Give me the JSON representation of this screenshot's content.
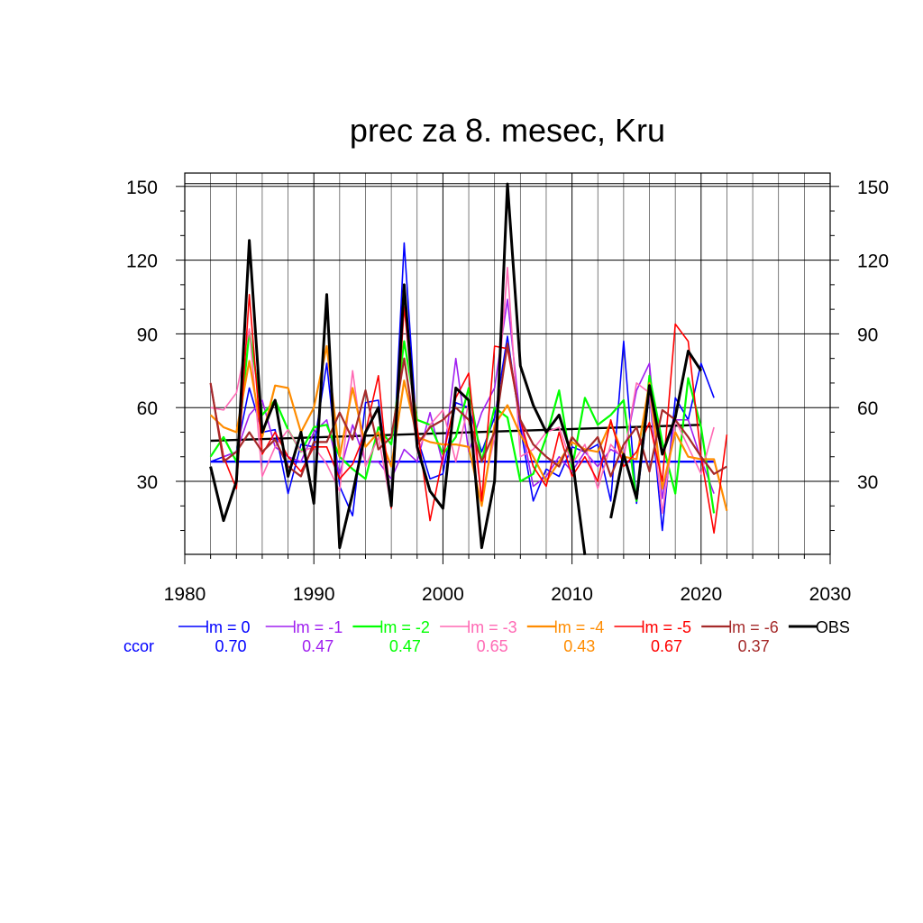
{
  "chart_data": {
    "type": "line",
    "title": "prec za 8. mesec, Kru",
    "xlabel": "",
    "ylabel": "",
    "xlim": [
      1980,
      2030
    ],
    "ylim": [
      0,
      150
    ],
    "x_ticks": [
      "1980",
      "1990",
      "2000",
      "2010",
      "2020",
      "2030"
    ],
    "y_ticks": [
      "30",
      "60",
      "90",
      "120",
      "150"
    ],
    "grid": true,
    "legend_position": "bottom",
    "ccor_label": "ccor",
    "series": [
      {
        "name": "lm = 0",
        "color": "#0000ff",
        "ccor": "0.70",
        "width": 1.6,
        "x": [
          1982,
          1983,
          1984,
          1985,
          1986,
          1987,
          1988,
          1989,
          1990,
          1991,
          1992,
          1993,
          1994,
          1995,
          1996,
          1997,
          1998,
          1999,
          2000,
          2001,
          2002,
          2003,
          2004,
          2005,
          2006,
          2007,
          2008,
          2009,
          2010,
          2011,
          2012,
          2013,
          2014,
          2015,
          2016,
          2017,
          2018,
          2019,
          2020,
          2021
        ],
        "y": [
          38,
          40,
          42,
          68,
          50,
          51,
          25,
          45,
          44,
          78,
          28,
          16,
          62,
          63,
          22,
          127,
          48,
          31,
          33,
          62,
          60,
          42,
          56,
          89,
          52,
          22,
          35,
          32,
          44,
          42,
          45,
          22,
          87,
          21,
          66,
          10,
          64,
          55,
          78,
          64
        ]
      },
      {
        "name": "lm = -1",
        "color": "#a020f0",
        "ccor": "0.47",
        "width": 1.6,
        "x": [
          1982,
          1983,
          1984,
          1985,
          1986,
          1987,
          1988,
          1989,
          1990,
          1991,
          1992,
          1993,
          1994,
          1995,
          1996,
          1997,
          1998,
          1999,
          2000,
          2001,
          2002,
          2003,
          2004,
          2005,
          2006,
          2007,
          2008,
          2009,
          2010,
          2011,
          2012,
          2013,
          2014,
          2015,
          2016,
          2017,
          2018,
          2019,
          2020,
          2021
        ],
        "y": [
          69,
          40,
          42,
          57,
          63,
          44,
          40,
          38,
          50,
          55,
          33,
          53,
          38,
          38,
          31,
          43,
          38,
          58,
          37,
          80,
          42,
          58,
          68,
          104,
          55,
          28,
          32,
          40,
          34,
          42,
          36,
          43,
          40,
          67,
          78,
          23,
          55,
          55,
          39,
          25
        ]
      },
      {
        "name": "lm = -2",
        "color": "#00ff00",
        "ccor": "0.47",
        "width": 2.2,
        "x": [
          1982,
          1983,
          1984,
          1985,
          1986,
          1987,
          1988,
          1989,
          1990,
          1991,
          1992,
          1993,
          1994,
          1995,
          1996,
          1997,
          1998,
          1999,
          2000,
          2001,
          2002,
          2003,
          2004,
          2005,
          2006,
          2007,
          2008,
          2009,
          2010,
          2011,
          2012,
          2013,
          2014,
          2015,
          2016,
          2017,
          2018,
          2019,
          2020,
          2021
        ],
        "y": [
          40,
          48,
          38,
          91,
          57,
          63,
          51,
          42,
          52,
          53,
          40,
          35,
          31,
          52,
          45,
          87,
          55,
          53,
          41,
          48,
          68,
          38,
          60,
          56,
          30,
          33,
          48,
          67,
          35,
          64,
          53,
          57,
          63,
          22,
          73,
          46,
          25,
          72,
          52,
          17
        ]
      },
      {
        "name": "lm = -3",
        "color": "#ff69b4",
        "ccor": "0.65",
        "width": 1.6,
        "x": [
          1982,
          1983,
          1984,
          1985,
          1986,
          1987,
          1988,
          1989,
          1990,
          1991,
          1992,
          1993,
          1994,
          1995,
          1996,
          1997,
          1998,
          1999,
          2000,
          2001,
          2002,
          2003,
          2004,
          2005,
          2006,
          2007,
          2008,
          2009,
          2010,
          2011,
          2012,
          2013,
          2014,
          2015,
          2016,
          2017,
          2018,
          2019,
          2020,
          2021
        ],
        "y": [
          60,
          59,
          66,
          92,
          32,
          44,
          51,
          42,
          44,
          37,
          26,
          75,
          36,
          48,
          20,
          102,
          42,
          53,
          59,
          38,
          62,
          24,
          48,
          117,
          40,
          43,
          50,
          52,
          37,
          45,
          27,
          45,
          39,
          70,
          66,
          17,
          55,
          44,
          33,
          52
        ]
      },
      {
        "name": "lm = -4",
        "color": "#ff8c00",
        "ccor": "0.43",
        "width": 2.2,
        "x": [
          1982,
          1983,
          1984,
          1985,
          1986,
          1987,
          1988,
          1989,
          1990,
          1991,
          1992,
          1993,
          1994,
          1995,
          1996,
          1997,
          1998,
          1999,
          2000,
          2001,
          2002,
          2003,
          2004,
          2005,
          2006,
          2007,
          2008,
          2009,
          2010,
          2011,
          2012,
          2013,
          2014,
          2015,
          2016,
          2017,
          2018,
          2019,
          2020,
          2021,
          2022
        ],
        "y": [
          57,
          52,
          50,
          79,
          48,
          69,
          68,
          50,
          60,
          85,
          40,
          68,
          44,
          50,
          36,
          71,
          48,
          46,
          45,
          45,
          44,
          20,
          53,
          61,
          49,
          40,
          30,
          38,
          46,
          43,
          42,
          54,
          40,
          39,
          70,
          27,
          50,
          40,
          39,
          39,
          18
        ]
      },
      {
        "name": "lm = -5",
        "color": "#ff0000",
        "ccor": "0.67",
        "width": 1.6,
        "x": [
          1982,
          1983,
          1984,
          1985,
          1986,
          1987,
          1988,
          1989,
          1990,
          1991,
          1992,
          1993,
          1994,
          1995,
          1996,
          1997,
          1998,
          1999,
          2000,
          2001,
          2002,
          2003,
          2004,
          2005,
          2006,
          2007,
          2008,
          2009,
          2010,
          2011,
          2012,
          2013,
          2014,
          2015,
          2016,
          2017,
          2018,
          2019,
          2020,
          2021,
          2022
        ],
        "y": [
          70,
          40,
          27,
          106,
          41,
          50,
          40,
          34,
          44,
          44,
          31,
          37,
          50,
          73,
          19,
          101,
          52,
          14,
          40,
          64,
          74,
          22,
          85,
          84,
          55,
          36,
          28,
          50,
          32,
          40,
          30,
          55,
          36,
          42,
          54,
          30,
          94,
          87,
          40,
          9,
          49
        ]
      },
      {
        "name": "lm = -6",
        "color": "#a52a2a",
        "ccor": "0.37",
        "width": 2.2,
        "x": [
          1982,
          1983,
          1984,
          1985,
          1986,
          1987,
          1988,
          1989,
          1990,
          1991,
          1992,
          1993,
          1994,
          1995,
          1996,
          1997,
          1998,
          1999,
          2000,
          2001,
          2002,
          2003,
          2004,
          2005,
          2006,
          2007,
          2008,
          2009,
          2010,
          2011,
          2012,
          2013,
          2014,
          2015,
          2016,
          2017,
          2018,
          2019,
          2020,
          2021,
          2022
        ],
        "y": [
          70,
          38,
          42,
          50,
          42,
          47,
          36,
          32,
          46,
          46,
          58,
          47,
          67,
          43,
          48,
          80,
          45,
          52,
          55,
          60,
          55,
          38,
          50,
          86,
          55,
          45,
          40,
          36,
          48,
          42,
          48,
          32,
          45,
          52,
          34,
          59,
          55,
          48,
          40,
          33,
          36
        ]
      },
      {
        "name": "OBS",
        "color": "#000000",
        "width": 3,
        "x": [
          1982,
          1983,
          1984,
          1985,
          1986,
          1987,
          1988,
          1989,
          1990,
          1991,
          1992,
          1993,
          1994,
          1995,
          1996,
          1997,
          1998,
          1999,
          2000,
          2001,
          2002,
          2003,
          2004,
          2005,
          2006,
          2007,
          2008,
          2009,
          2010,
          2011,
          2013,
          2014,
          2015,
          2016,
          2017,
          2018,
          2019,
          2020
        ],
        "y": [
          36,
          14,
          30,
          128,
          50,
          63,
          32,
          50,
          21,
          106,
          3,
          25,
          50,
          60,
          20,
          110,
          44,
          26,
          19,
          68,
          63,
          3,
          30,
          151,
          77,
          61,
          50,
          57,
          40,
          0,
          15,
          41,
          23,
          69,
          41,
          56,
          83,
          75
        ]
      }
    ],
    "trend_lines": [
      {
        "color": "#0000ff",
        "x": [
          1982,
          2021
        ],
        "y": [
          38,
          38
        ]
      },
      {
        "color": "#000000",
        "x": [
          1982,
          2020
        ],
        "y": [
          46.5,
          53
        ]
      }
    ]
  }
}
